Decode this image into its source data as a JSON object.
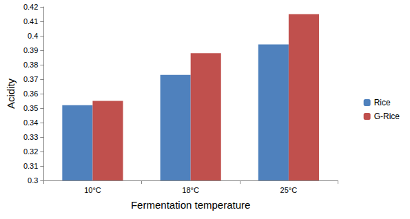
{
  "chart_data": {
    "type": "bar",
    "x_label": "Fermentation temperature",
    "y_label": "Acidity",
    "categories": [
      "10°C",
      "18°C",
      "25°C"
    ],
    "series": [
      {
        "name": "Rice",
        "color": "#4f81bd",
        "values": [
          0.352,
          0.373,
          0.394
        ]
      },
      {
        "name": "G-Rice",
        "color": "#c0504d",
        "values": [
          0.355,
          0.388,
          0.415
        ]
      }
    ],
    "ylim": [
      0.3,
      0.42
    ],
    "yticks": [
      0.3,
      0.31,
      0.32,
      0.33,
      0.34,
      0.35,
      0.36,
      0.37,
      0.38,
      0.39,
      0.4,
      0.41,
      0.42
    ],
    "grid": false,
    "legend": "right"
  }
}
